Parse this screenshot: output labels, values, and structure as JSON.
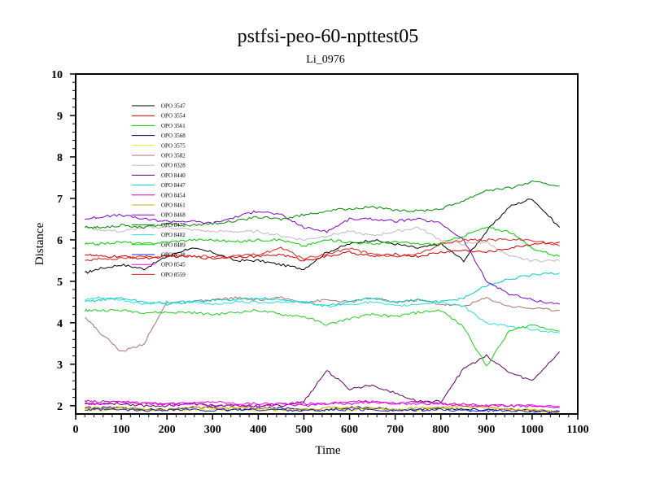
{
  "chart_data": {
    "type": "line",
    "title": "pstfsi-peo-60-npttest05",
    "subtitle": "Li_0976",
    "xlabel": "Time",
    "ylabel": "Distance",
    "xlim": [
      0,
      1100
    ],
    "ylim": [
      1.8,
      10
    ],
    "xticks": [
      0,
      100,
      200,
      300,
      400,
      500,
      600,
      700,
      800,
      900,
      1000,
      1100
    ],
    "yticks": [
      2,
      3,
      4,
      5,
      6,
      7,
      8,
      9,
      10
    ],
    "x": [
      20,
      50,
      100,
      150,
      200,
      250,
      300,
      350,
      400,
      450,
      500,
      550,
      600,
      650,
      700,
      750,
      800,
      850,
      900,
      950,
      1000,
      1060
    ],
    "series": [
      {
        "name": "OPO 3547",
        "color": "#000000",
        "values": [
          5.2,
          5.3,
          5.4,
          5.3,
          5.6,
          5.8,
          5.7,
          5.5,
          5.5,
          5.4,
          5.3,
          5.7,
          5.9,
          6.0,
          5.9,
          5.8,
          5.9,
          5.5,
          6.2,
          6.8,
          7.0,
          6.3
        ]
      },
      {
        "name": "OPO 3554",
        "color": "#cc0000",
        "values": [
          5.65,
          5.6,
          5.6,
          5.55,
          5.6,
          5.6,
          5.55,
          5.6,
          5.6,
          5.65,
          5.5,
          5.6,
          5.7,
          5.6,
          5.65,
          5.6,
          5.7,
          5.75,
          5.7,
          5.8,
          5.9,
          5.95
        ]
      },
      {
        "name": "OPO 3561",
        "color": "#00cc00",
        "values": [
          5.9,
          5.9,
          5.95,
          5.9,
          5.95,
          6.0,
          6.0,
          5.95,
          6.0,
          6.0,
          5.85,
          6.0,
          5.95,
          5.9,
          5.95,
          5.9,
          5.9,
          6.1,
          6.3,
          6.2,
          5.8,
          5.6
        ]
      },
      {
        "name": "OPO 3568",
        "color": "#000080",
        "values": [
          1.95,
          1.95,
          1.95,
          1.9,
          1.9,
          1.95,
          1.95,
          1.9,
          1.95,
          1.95,
          1.9,
          1.9,
          1.95,
          1.95,
          1.9,
          1.9,
          1.95,
          1.9,
          1.9,
          1.9,
          1.88,
          1.85
        ]
      },
      {
        "name": "OPO 3575",
        "color": "#e6e600",
        "values": [
          1.9,
          1.9,
          1.92,
          1.9,
          1.88,
          1.9,
          1.9,
          1.92,
          1.9,
          1.9,
          1.88,
          1.9,
          1.9,
          1.92,
          1.9,
          1.9,
          1.92,
          1.95,
          2.0,
          1.9,
          1.88,
          1.85
        ]
      },
      {
        "name": "OPO 3582",
        "color": "#b07070",
        "values": [
          4.15,
          3.8,
          3.3,
          3.5,
          4.5,
          4.5,
          4.55,
          4.6,
          4.55,
          4.6,
          4.5,
          4.55,
          4.5,
          4.6,
          4.5,
          4.55,
          4.45,
          4.4,
          4.6,
          4.4,
          4.35,
          4.3
        ]
      },
      {
        "name": "OPO 8328",
        "color": "#bbbbbb",
        "values": [
          6.3,
          6.25,
          6.2,
          6.3,
          6.3,
          6.25,
          6.2,
          6.2,
          6.2,
          6.1,
          6.0,
          6.1,
          6.2,
          6.1,
          6.2,
          6.3,
          6.0,
          5.9,
          5.95,
          5.6,
          5.5,
          5.5
        ]
      },
      {
        "name": "OPO 8440",
        "color": "#660066",
        "values": [
          2.05,
          2.05,
          2.05,
          2.0,
          2.0,
          2.05,
          2.0,
          2.0,
          2.0,
          2.0,
          2.1,
          2.85,
          2.4,
          2.5,
          2.3,
          2.1,
          2.1,
          2.9,
          3.2,
          2.8,
          2.6,
          3.3
        ]
      },
      {
        "name": "OPO 8447",
        "color": "#00cccc",
        "values": [
          4.5,
          4.55,
          4.6,
          4.5,
          4.45,
          4.5,
          4.55,
          4.55,
          4.6,
          4.55,
          4.5,
          4.4,
          4.5,
          4.6,
          4.5,
          4.55,
          4.5,
          4.6,
          4.9,
          5.05,
          5.15,
          5.2
        ]
      },
      {
        "name": "OPO 8454",
        "color": "#cc00cc",
        "values": [
          2.1,
          2.1,
          2.1,
          2.05,
          2.05,
          2.05,
          2.0,
          2.0,
          2.0,
          2.05,
          2.0,
          2.05,
          2.05,
          2.1,
          2.05,
          2.1,
          2.05,
          2.05,
          2.0,
          2.0,
          2.0,
          1.95
        ]
      },
      {
        "name": "OPO 8461",
        "color": "#ccaa00",
        "values": [
          1.95,
          1.95,
          1.95,
          1.92,
          1.9,
          1.95,
          1.95,
          1.95,
          1.95,
          1.9,
          1.9,
          1.95,
          1.95,
          1.95,
          1.9,
          1.95,
          1.95,
          2.0,
          1.95,
          1.9,
          1.9,
          1.88
        ]
      },
      {
        "name": "OPO 8468",
        "color": "#8800cc",
        "values": [
          6.5,
          6.55,
          6.6,
          6.5,
          6.45,
          6.45,
          6.4,
          6.55,
          6.7,
          6.6,
          6.3,
          6.2,
          6.5,
          6.5,
          6.45,
          6.5,
          6.4,
          6.0,
          5.0,
          4.7,
          4.55,
          4.45
        ]
      },
      {
        "name": "OPO 8475",
        "color": "#008800",
        "values": [
          6.3,
          6.3,
          6.35,
          6.3,
          6.4,
          6.35,
          6.4,
          6.45,
          6.55,
          6.5,
          6.6,
          6.7,
          6.75,
          6.8,
          6.7,
          6.7,
          6.75,
          6.95,
          7.2,
          7.25,
          7.4,
          7.3
        ]
      },
      {
        "name": "OPO 8482",
        "color": "#33dddd",
        "values": [
          4.55,
          4.6,
          4.55,
          4.45,
          4.5,
          4.5,
          4.45,
          4.5,
          4.5,
          4.5,
          4.5,
          4.4,
          4.45,
          4.5,
          4.4,
          4.45,
          4.5,
          4.4,
          4.0,
          3.9,
          3.85,
          3.75
        ]
      },
      {
        "name": "OPO 8489",
        "color": "#22cc22",
        "values": [
          4.3,
          4.3,
          4.3,
          4.25,
          4.25,
          4.25,
          4.2,
          4.25,
          4.3,
          4.2,
          4.15,
          3.95,
          4.1,
          4.2,
          4.15,
          4.25,
          4.3,
          3.9,
          2.95,
          3.8,
          3.95,
          3.8
        ]
      },
      {
        "name": "OPO 8538",
        "color": "#2222cc",
        "values": [
          1.9,
          1.9,
          1.9,
          1.88,
          1.9,
          1.9,
          1.88,
          1.9,
          1.9,
          1.9,
          1.88,
          1.9,
          1.9,
          1.9,
          1.88,
          1.9,
          1.9,
          1.88,
          1.88,
          1.88,
          1.86,
          1.86
        ]
      },
      {
        "name": "OPO 8545",
        "color": "#ee00ee",
        "values": [
          2.05,
          2.05,
          2.1,
          2.05,
          2.05,
          2.05,
          2.1,
          2.05,
          2.05,
          2.05,
          2.05,
          2.05,
          2.1,
          2.1,
          2.05,
          2.05,
          2.05,
          2.0,
          2.0,
          2.0,
          2.0,
          1.98
        ]
      },
      {
        "name": "OPO 8559",
        "color": "#dd2222",
        "values": [
          5.5,
          5.55,
          5.55,
          5.6,
          5.6,
          5.6,
          5.6,
          5.6,
          5.65,
          5.8,
          5.55,
          5.65,
          5.8,
          5.65,
          5.6,
          5.65,
          5.9,
          6.0,
          6.0,
          6.0,
          6.0,
          5.85
        ]
      }
    ]
  }
}
